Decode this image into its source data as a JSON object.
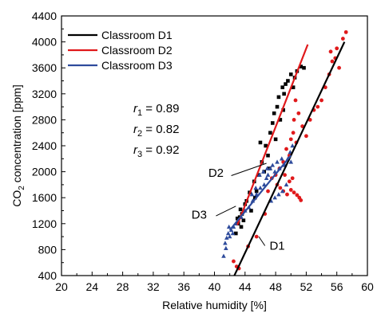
{
  "chart_data": {
    "type": "scatter",
    "xlabel": "Relative humidity [%]",
    "ylabel_parts": {
      "pre": "CO",
      "sub": "2",
      "post": " concentration [ppm]"
    },
    "xlim": [
      20,
      60
    ],
    "ylim": [
      400,
      4400
    ],
    "x_ticks": [
      20,
      24,
      28,
      32,
      36,
      40,
      44,
      48,
      52,
      56,
      60
    ],
    "y_ticks": [
      400,
      800,
      1200,
      1600,
      2000,
      2400,
      2800,
      3200,
      3600,
      4000,
      4400
    ],
    "grid": false,
    "legend_position": "top-left",
    "series": [
      {
        "name": "Classroom D1",
        "color": "#000000",
        "marker": "square",
        "points": [
          [
            42.8,
            1050
          ],
          [
            43.1,
            1200
          ],
          [
            43.3,
            1300
          ],
          [
            43.5,
            1150
          ],
          [
            43.0,
            1280
          ],
          [
            43.4,
            1420
          ],
          [
            43.6,
            1350
          ],
          [
            44.0,
            1500
          ],
          [
            44.6,
            1680
          ],
          [
            45.2,
            1850
          ],
          [
            45.5,
            1700
          ],
          [
            45.8,
            1950
          ],
          [
            46.2,
            2150
          ],
          [
            46.0,
            2450
          ],
          [
            46.7,
            2400
          ],
          [
            47.0,
            2250
          ],
          [
            47.3,
            2600
          ],
          [
            47.6,
            2750
          ],
          [
            47.8,
            2900
          ],
          [
            48.0,
            2500
          ],
          [
            48.2,
            3000
          ],
          [
            48.4,
            3150
          ],
          [
            48.6,
            2800
          ],
          [
            48.9,
            3300
          ],
          [
            49.1,
            3200
          ],
          [
            49.3,
            3350
          ],
          [
            49.6,
            3400
          ],
          [
            50.0,
            3500
          ],
          [
            50.3,
            3300
          ],
          [
            50.8,
            3550
          ],
          [
            51.3,
            3620
          ],
          [
            51.7,
            3600
          ],
          [
            44.8,
            1400
          ],
          [
            45.3,
            1600
          ],
          [
            46.5,
            2000
          ],
          [
            47.2,
            2050
          ],
          [
            49.0,
            2950
          ],
          [
            50.5,
            3450
          ],
          [
            44.2,
            1550
          ],
          [
            43.8,
            1250
          ]
        ],
        "fit": [
          [
            42.6,
            400
          ],
          [
            57.0,
            4000
          ]
        ],
        "fit_label": "D1"
      },
      {
        "name": "Classroom D2",
        "color": "#e0191b",
        "marker": "circle",
        "points": [
          [
            42.5,
            620
          ],
          [
            42.9,
            540
          ],
          [
            43.2,
            510
          ],
          [
            44.4,
            850
          ],
          [
            45.5,
            1000
          ],
          [
            46.6,
            1350
          ],
          [
            47.0,
            1700
          ],
          [
            47.5,
            1900
          ],
          [
            48.0,
            1950
          ],
          [
            48.5,
            2050
          ],
          [
            49.0,
            2150
          ],
          [
            49.4,
            2350
          ],
          [
            49.8,
            2250
          ],
          [
            50.0,
            2500
          ],
          [
            50.3,
            2600
          ],
          [
            50.4,
            2800
          ],
          [
            50.6,
            3100
          ],
          [
            50.7,
            2450
          ],
          [
            51.0,
            2900
          ],
          [
            51.5,
            2700
          ],
          [
            52.0,
            2550
          ],
          [
            52.5,
            2800
          ],
          [
            53.0,
            2950
          ],
          [
            53.5,
            3000
          ],
          [
            54.0,
            3100
          ],
          [
            54.5,
            3300
          ],
          [
            55.0,
            3500
          ],
          [
            55.4,
            3700
          ],
          [
            55.8,
            3750
          ],
          [
            56.3,
            3600
          ],
          [
            56.8,
            4050
          ],
          [
            57.2,
            4150
          ],
          [
            48.2,
            1800
          ],
          [
            48.6,
            1750
          ],
          [
            49.0,
            1700
          ],
          [
            49.5,
            1650
          ],
          [
            50.0,
            1720
          ],
          [
            50.4,
            1680
          ],
          [
            50.8,
            1640
          ],
          [
            51.1,
            1600
          ],
          [
            51.3,
            1560
          ],
          [
            49.2,
            1950
          ],
          [
            49.8,
            1850
          ],
          [
            50.2,
            1900
          ],
          [
            55.2,
            3850
          ],
          [
            56.0,
            3900
          ]
        ],
        "fit": [
          [
            43.0,
            1180
          ],
          [
            52.2,
            3960
          ]
        ],
        "fit_label": "D2"
      },
      {
        "name": "Classroom D3",
        "color": "#2e4b9c",
        "marker": "triangle",
        "points": [
          [
            41.2,
            700
          ],
          [
            41.4,
            900
          ],
          [
            41.6,
            980
          ],
          [
            41.8,
            1050
          ],
          [
            42.0,
            1000
          ],
          [
            42.2,
            1100
          ],
          [
            42.5,
            1150
          ],
          [
            42.8,
            1200
          ],
          [
            43.1,
            1250
          ],
          [
            43.5,
            1300
          ],
          [
            44.0,
            1400
          ],
          [
            44.5,
            1450
          ],
          [
            45.0,
            1550
          ],
          [
            45.5,
            1650
          ],
          [
            46.0,
            1750
          ],
          [
            46.5,
            1800
          ],
          [
            46.8,
            1900
          ],
          [
            47.0,
            1950
          ],
          [
            47.3,
            2050
          ],
          [
            47.6,
            2100
          ],
          [
            47.9,
            2000
          ],
          [
            48.2,
            2150
          ],
          [
            48.5,
            2050
          ],
          [
            48.8,
            2200
          ],
          [
            49.2,
            2100
          ],
          [
            49.6,
            2200
          ],
          [
            49.9,
            2300
          ],
          [
            50.2,
            2400
          ],
          [
            50.0,
            2150
          ],
          [
            49.4,
            1800
          ],
          [
            48.9,
            1700
          ],
          [
            48.4,
            1650
          ],
          [
            47.9,
            1600
          ],
          [
            47.4,
            1550
          ],
          [
            46.9,
            2050
          ],
          [
            46.4,
            2000
          ],
          [
            45.9,
            1950
          ],
          [
            45.4,
            1750
          ],
          [
            44.9,
            1650
          ],
          [
            41.5,
            820
          ],
          [
            41.9,
            1150
          ],
          [
            42.4,
            1050
          ]
        ],
        "fit": [
          [
            42.0,
            1100
          ],
          [
            50.0,
            2250
          ]
        ],
        "fit_label": "D3"
      }
    ],
    "annotations": [
      {
        "base": "r",
        "sub": "1",
        "rest": " = 0.89"
      },
      {
        "base": "r",
        "sub": "2",
        "rest": " = 0.82"
      },
      {
        "base": "r",
        "sub": "3",
        "rest": " = 0.92"
      }
    ]
  }
}
